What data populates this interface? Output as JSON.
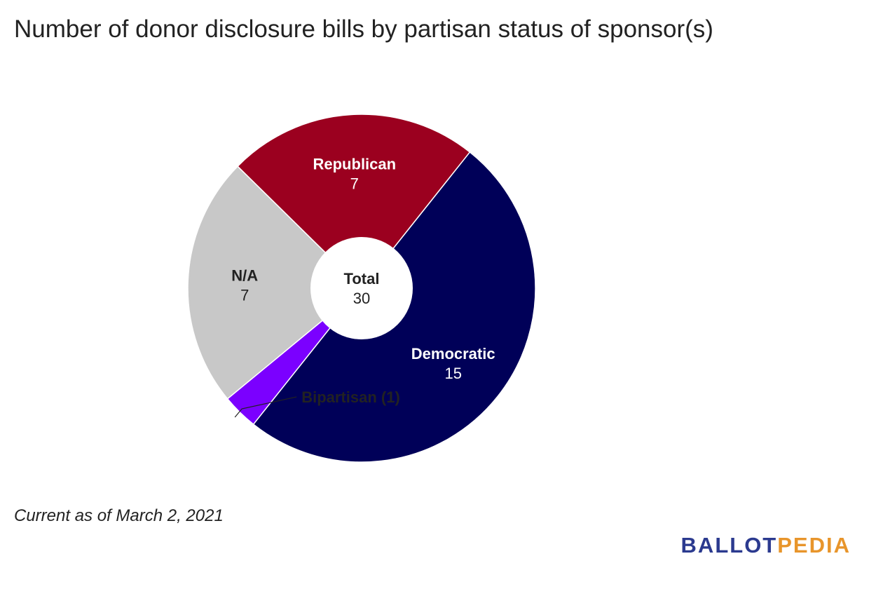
{
  "chart_data": {
    "type": "pie",
    "title": "Number of donor disclosure bills by partisan status of sponsor(s)",
    "center_label": "Total",
    "center_value": 30,
    "slices": [
      {
        "label": "Democratic",
        "value": 15,
        "color": "#000058",
        "label_color": "#ffffff"
      },
      {
        "label": "Bipartisan",
        "value": 1,
        "color": "#7b00ff",
        "callout": "Bipartisan (1)"
      },
      {
        "label": "N/A",
        "value": 7,
        "color": "#c8c8c8",
        "label_color": "#222222"
      },
      {
        "label": "Republican",
        "value": 7,
        "color": "#9b001f",
        "label_color": "#ffffff"
      }
    ]
  },
  "footnote": "Current as of March 2, 2021",
  "logo": {
    "part1": "BALLOT",
    "part2": "PEDIA"
  }
}
